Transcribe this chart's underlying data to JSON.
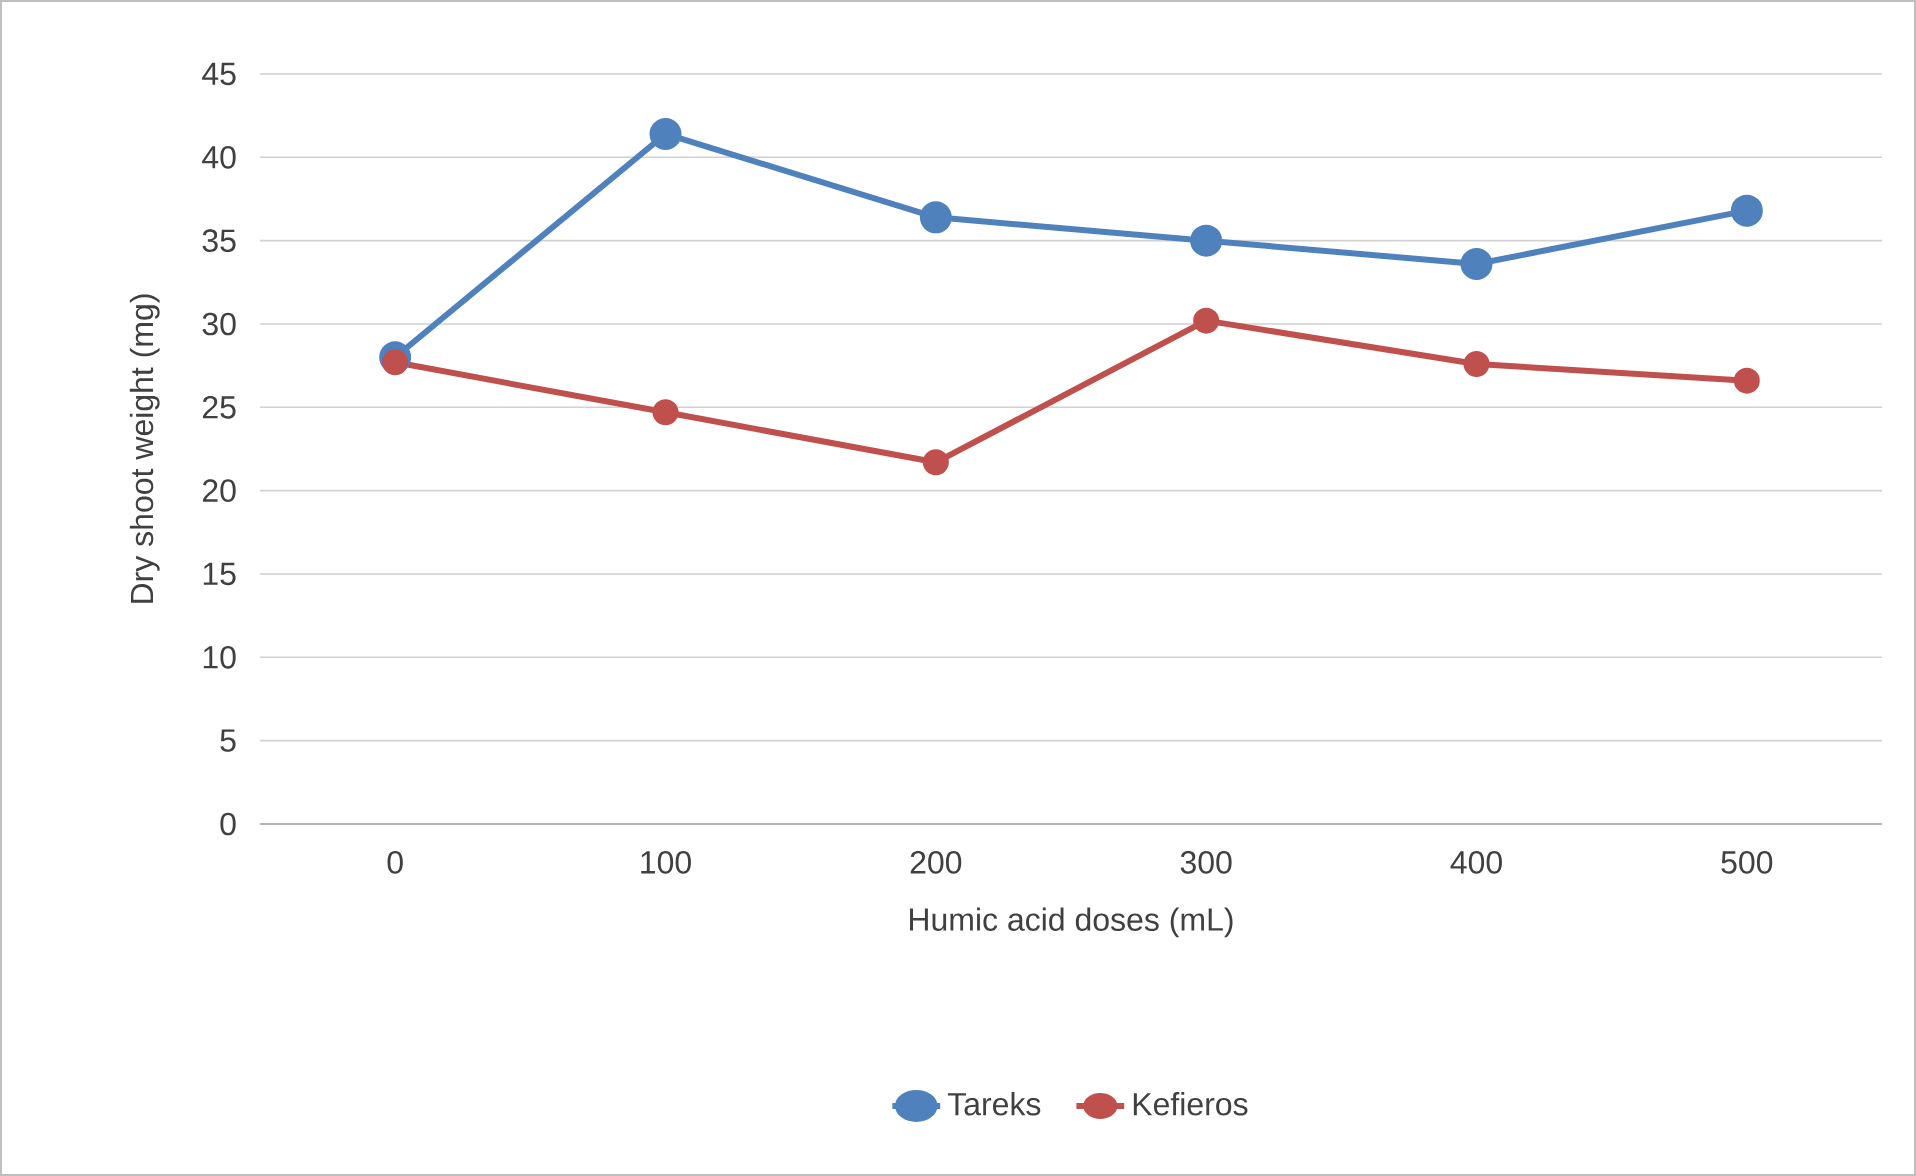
{
  "chart_data": {
    "type": "line",
    "xlabel": "Humic acid doses (mL)",
    "ylabel": "Dry shoot weight (mg)",
    "categories": [
      "0",
      "100",
      "200",
      "300",
      "400",
      "500"
    ],
    "series": [
      {
        "name": "Tareks",
        "color": "#4f81bd",
        "values": [
          28.0,
          41.4,
          36.4,
          35.0,
          33.6,
          36.8
        ]
      },
      {
        "name": "Kefieros",
        "color": "#c0504d",
        "values": [
          27.7,
          24.7,
          21.7,
          30.2,
          27.6,
          26.6
        ]
      }
    ],
    "ylim": [
      0,
      45
    ],
    "yticks": [
      0,
      5,
      10,
      15,
      20,
      25,
      30,
      35,
      40,
      45
    ],
    "grid": "y",
    "legend": "bottom",
    "marker": "circle",
    "line_style": "solid"
  }
}
